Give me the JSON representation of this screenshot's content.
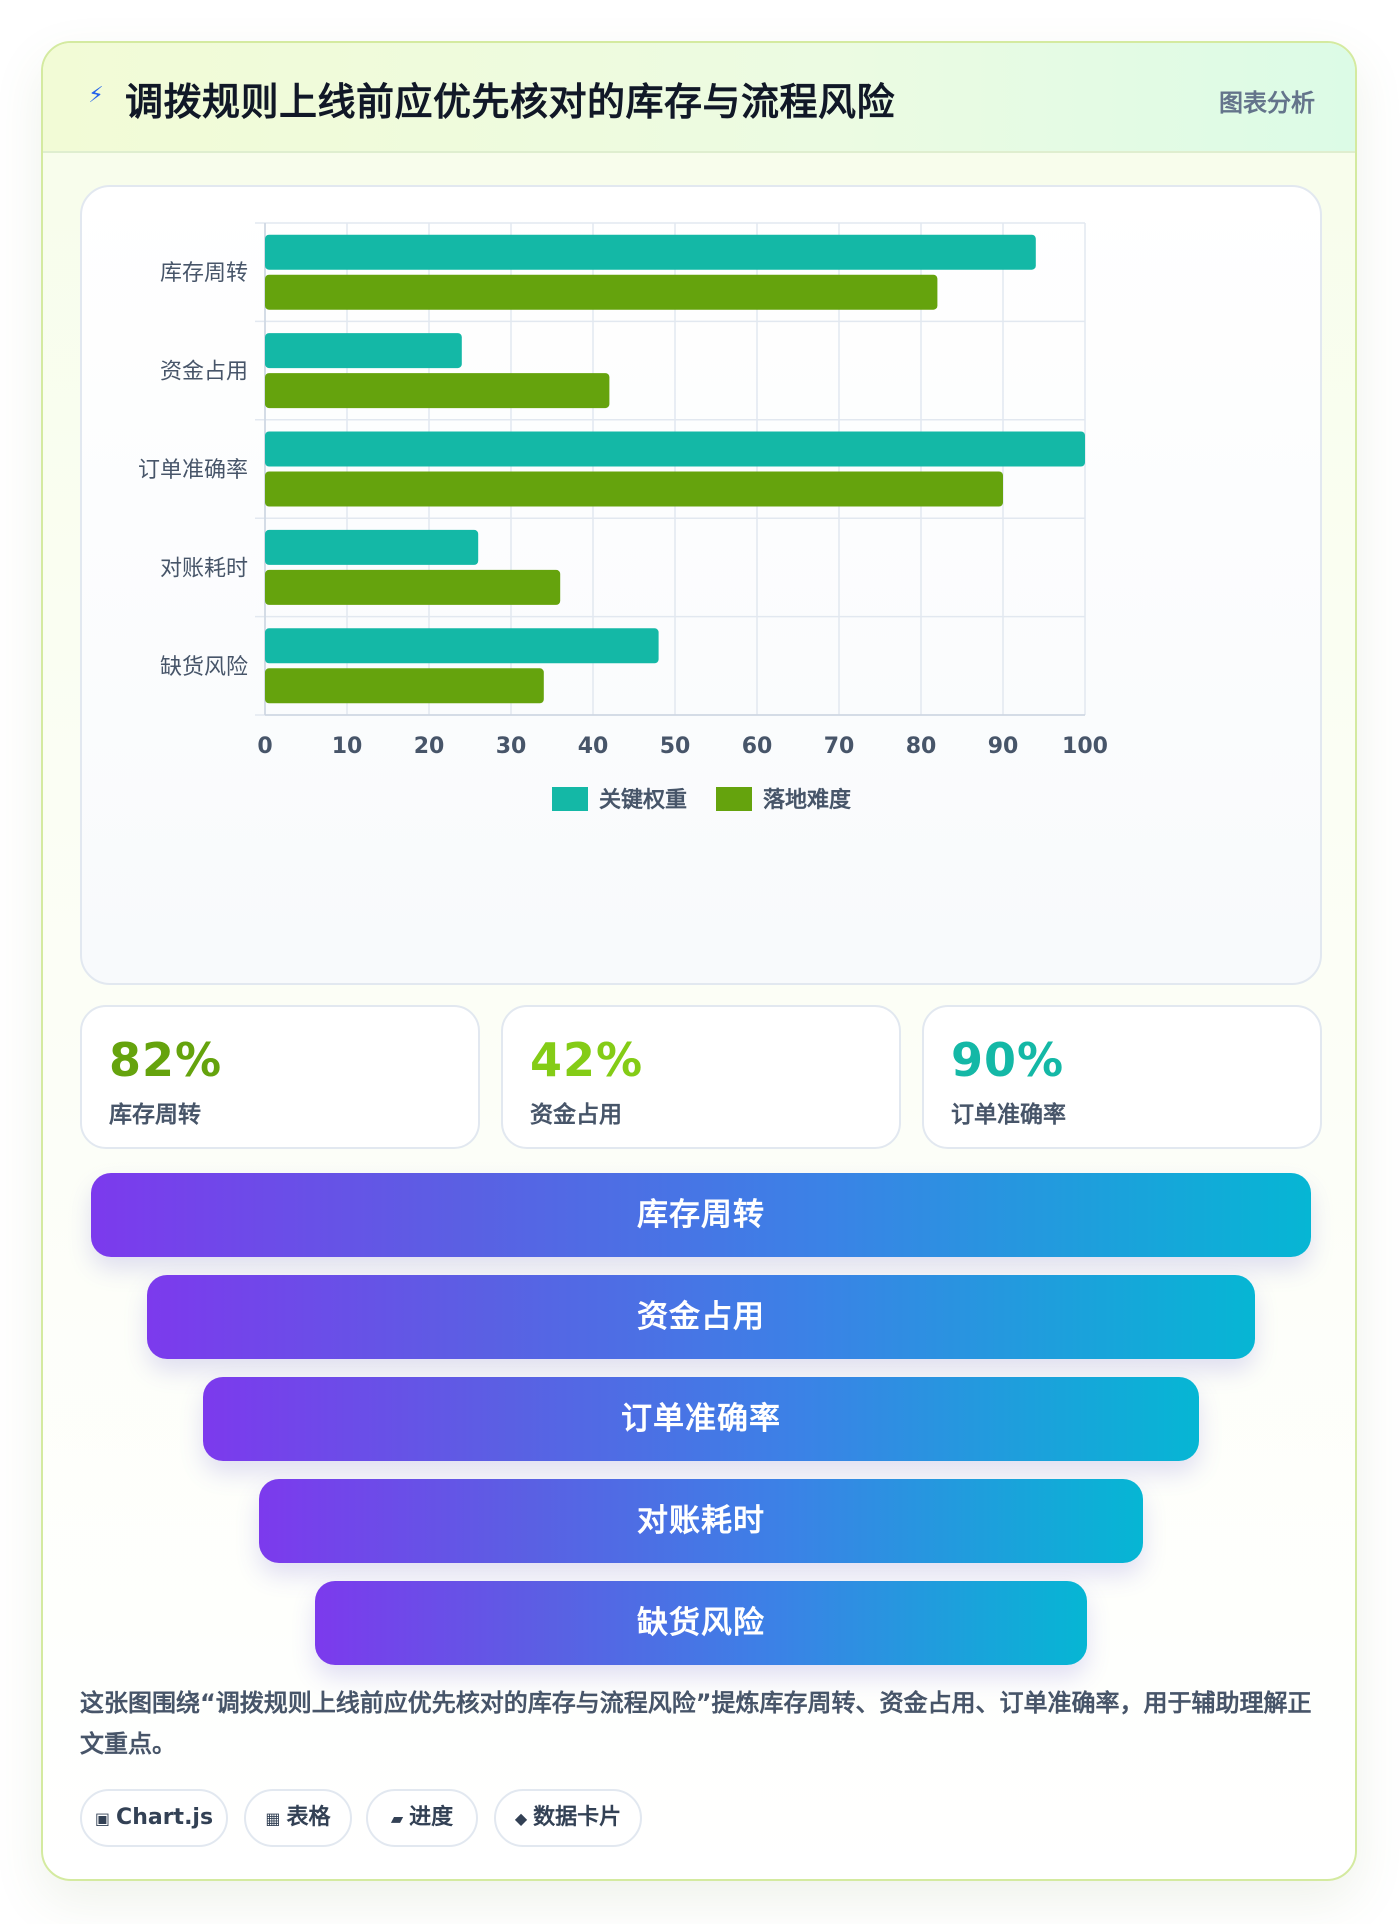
{
  "header": {
    "icon": "lightning-icon",
    "title": "调拨规则上线前应优先核对的库存与流程风险",
    "tag": "图表分析"
  },
  "chart_data": {
    "type": "bar",
    "orientation": "horizontal",
    "categories": [
      "库存周转",
      "资金占用",
      "订单准确率",
      "对账耗时",
      "缺货风险"
    ],
    "series": [
      {
        "name": "关键权重",
        "color": "#14b8a6",
        "values": [
          94,
          24,
          100,
          26,
          48
        ]
      },
      {
        "name": "落地难度",
        "color": "#65a30d",
        "values": [
          82,
          42,
          90,
          36,
          34
        ]
      }
    ],
    "xlim": [
      0,
      100
    ],
    "xticks": [
      "0",
      "10",
      "20",
      "30",
      "40",
      "50",
      "60",
      "70",
      "80",
      "90",
      "100"
    ],
    "grid": true,
    "legend": "bottom"
  },
  "kpis": [
    {
      "value": "82%",
      "label": "库存周转",
      "color": "#65a30d"
    },
    {
      "value": "42%",
      "label": "资金占用",
      "color": "#84cc16"
    },
    {
      "value": "90%",
      "label": "订单准确率",
      "color": "#14b8a6"
    }
  ],
  "funnel": [
    "库存周转",
    "资金占用",
    "订单准确率",
    "对账耗时",
    "缺货风险"
  ],
  "summary": "这张图围绕“调拨规则上线前应优先核对的库存与流程风险”提炼库存周转、资金占用、订单准确率，用于辅助理解正文重点。",
  "chips": [
    {
      "icon": "▣",
      "label": "Chart.js"
    },
    {
      "icon": "▦",
      "label": "表格"
    },
    {
      "icon": "▰",
      "label": "进度"
    },
    {
      "icon": "◆",
      "label": "数据卡片"
    }
  ]
}
